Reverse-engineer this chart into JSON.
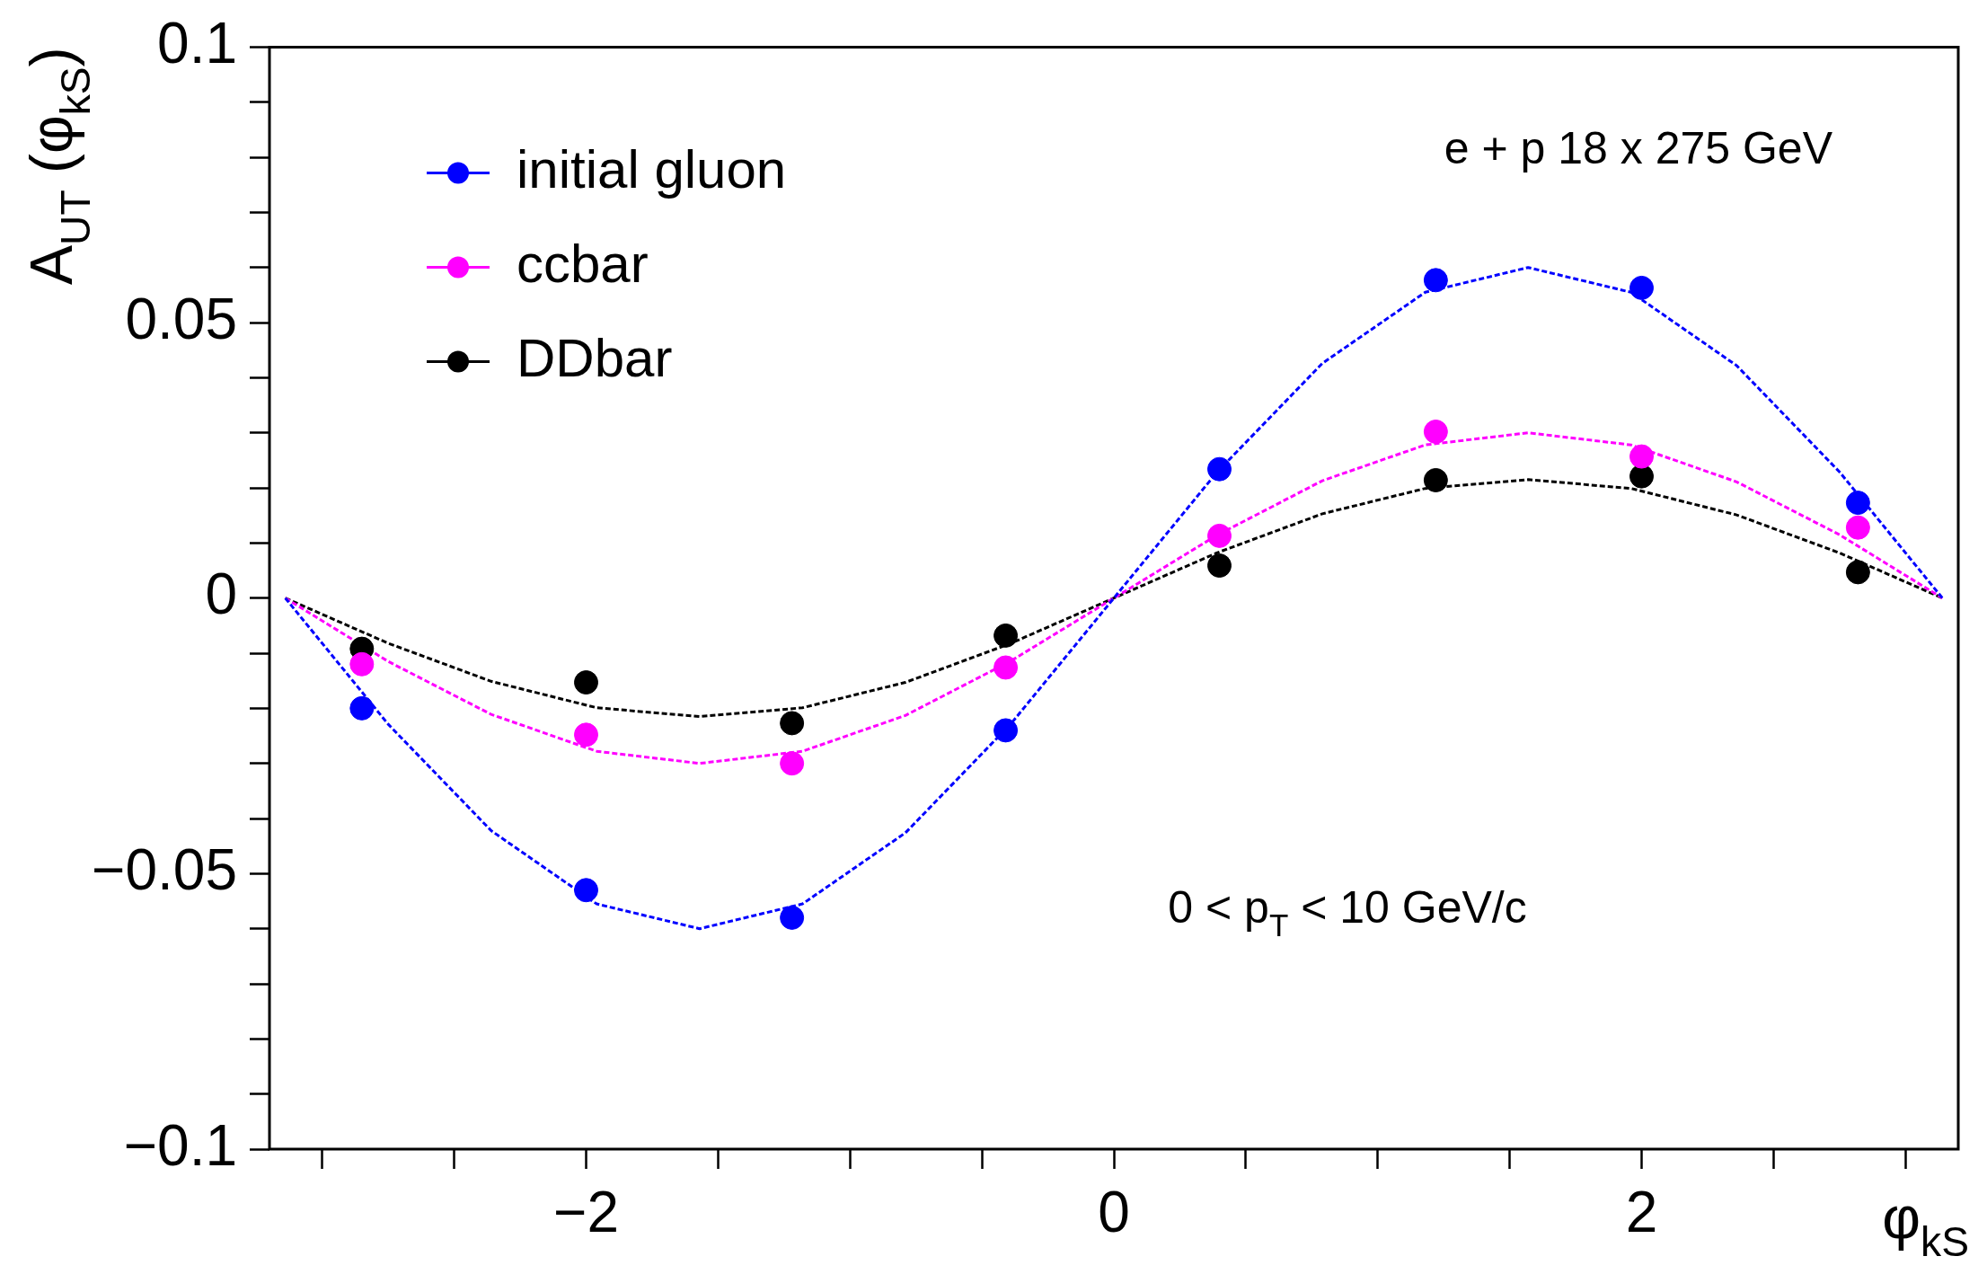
{
  "chart_data": {
    "type": "scatter",
    "xlabel": "φ$_{kS}$",
    "ylabel": "A$_{UT}$ (φ$_{kS}$)",
    "annotations": [
      "e + p 18 x 275 GeV",
      "0 < p$_{T}$ < 10 GeV/c"
    ],
    "x": [
      -2.85,
      -2,
      -1.22,
      -0.41,
      0.4,
      1.22,
      2,
      2.82
    ],
    "series": [
      {
        "name": "initial gluon",
        "color": "#0000ff",
        "values": [
          -0.02,
          -0.053,
          -0.058,
          -0.024,
          0.0234,
          0.0577,
          0.0563,
          0.0173
        ]
      },
      {
        "name": "ccbar",
        "color": "#ff00ff",
        "values": [
          -0.012,
          -0.0248,
          -0.03,
          -0.0126,
          0.0113,
          0.0302,
          0.0257,
          0.0128
        ]
      },
      {
        "name": "DDbar",
        "color": "#000000",
        "values": [
          -0.0092,
          -0.0153,
          -0.0227,
          -0.0068,
          0.0059,
          0.0214,
          0.0221,
          0.0047
        ]
      },
      {
        "type": "line",
        "color": "#0000ff",
        "line_style": "dotted",
        "marker": "none",
        "x": [
          -3.14,
          -2.75,
          -2.36,
          -1.96,
          -1.57,
          -1.18,
          -0.79,
          -0.39,
          0,
          0.39,
          0.79,
          1.18,
          1.57,
          1.96,
          2.36,
          2.75,
          3.14
        ],
        "values": [
          0,
          -0.0229,
          -0.0422,
          -0.0555,
          -0.06,
          -0.0555,
          -0.0426,
          -0.0228,
          0,
          0.0228,
          0.0426,
          0.0555,
          0.06,
          0.0555,
          0.0422,
          0.0229,
          0
        ]
      },
      {
        "type": "line",
        "color": "#ff00ff",
        "line_style": "dotted",
        "marker": "none",
        "x": [
          -3.14,
          -2.75,
          -2.36,
          -1.96,
          -1.57,
          -1.18,
          -0.79,
          -0.39,
          0,
          0.39,
          0.79,
          1.18,
          1.57,
          1.96,
          2.36,
          2.75,
          3.14
        ],
        "values": [
          0,
          -0.0115,
          -0.0211,
          -0.0278,
          -0.03,
          -0.0278,
          -0.0213,
          -0.0114,
          0,
          0.0114,
          0.0213,
          0.0278,
          0.03,
          0.0278,
          0.0211,
          0.0115,
          0
        ]
      },
      {
        "type": "line",
        "color": "#000000",
        "line_style": "dotted",
        "marker": "none",
        "x": [
          -3.14,
          -2.75,
          -2.36,
          -1.96,
          -1.57,
          -1.18,
          -0.79,
          -0.39,
          0,
          0.39,
          0.79,
          1.18,
          1.57,
          1.96,
          2.36,
          2.75,
          3.14
        ],
        "values": [
          0,
          -0.0082,
          -0.0151,
          -0.0199,
          -0.0215,
          -0.0199,
          -0.0153,
          -0.0082,
          0,
          0.0082,
          0.0153,
          0.0199,
          0.0215,
          0.0199,
          0.0151,
          0.0082,
          0
        ]
      }
    ],
    "marker": "circle",
    "legend": "top left",
    "grid": false,
    "xlim": [
      -3.2,
      3.2
    ],
    "xticks": [
      {
        "value": -2,
        "label": "−2"
      },
      0,
      2
    ],
    "ylim": [
      -0.1,
      0.1
    ],
    "yticks": [
      {
        "value": -0.1,
        "label": "−0.1"
      },
      {
        "value": -0.05,
        "label": "−0.05"
      },
      0,
      0.05,
      0.1
    ]
  }
}
